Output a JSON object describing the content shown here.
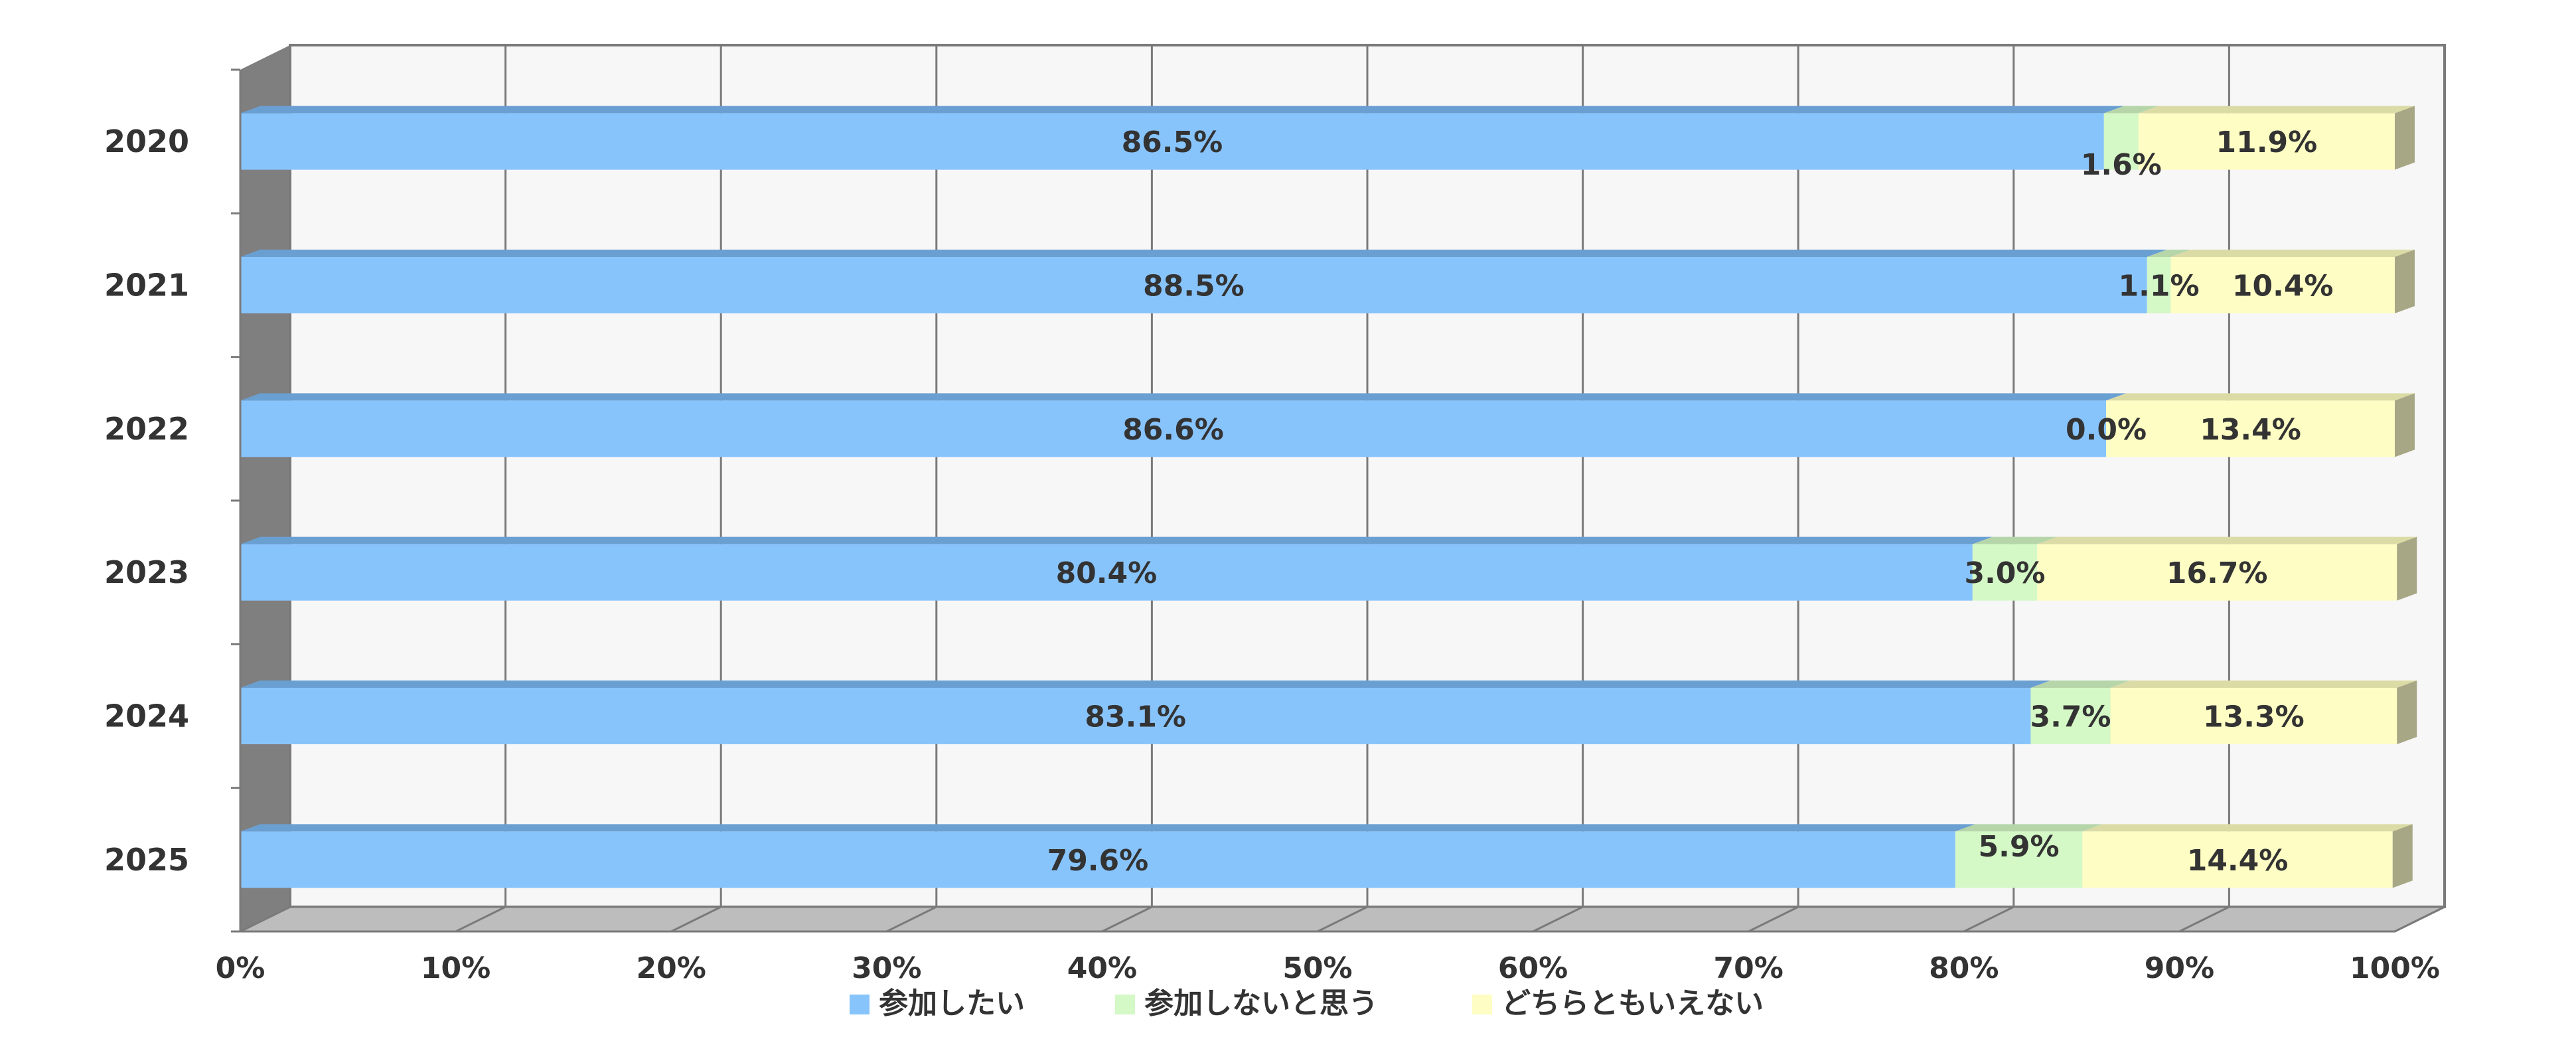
{
  "chart_data": {
    "type": "bar",
    "orientation": "horizontal",
    "stacked": "percent",
    "three_d": true,
    "categories": [
      "2020",
      "2021",
      "2022",
      "2023",
      "2024",
      "2025"
    ],
    "series": [
      {
        "name": "参加したい",
        "values": [
          86.5,
          88.5,
          86.6,
          80.4,
          83.1,
          79.6
        ],
        "color": "#88c4fc",
        "top_color": "#6a9fd2",
        "side_color": "#6a9fd2"
      },
      {
        "name": "参加しないと思う",
        "values": [
          1.6,
          1.1,
          0.0,
          3.0,
          3.7,
          5.9
        ],
        "color": "#d4f8c6",
        "top_color": "#b6d6aa",
        "side_color": "#a8c49c"
      },
      {
        "name": "どちらともいえない",
        "values": [
          11.9,
          10.4,
          13.4,
          16.7,
          13.3,
          14.4
        ],
        "color": "#fdfdc4",
        "top_color": "#dbdba6",
        "side_color": "#a7a785"
      }
    ],
    "data_labels": [
      [
        "86.5%",
        "88.5%",
        "86.6%",
        "80.4%",
        "83.1%",
        "79.6%"
      ],
      [
        "1.6%",
        "1.1%",
        "0.0%",
        "3.0%",
        "3.7%",
        "5.9%"
      ],
      [
        "11.9%",
        "10.4%",
        "13.4%",
        "16.7%",
        "13.3%",
        "14.4%"
      ]
    ],
    "x_ticks": [
      "0%",
      "10%",
      "20%",
      "30%",
      "40%",
      "50%",
      "60%",
      "70%",
      "80%",
      "90%",
      "100%"
    ],
    "xlim": [
      0,
      100
    ],
    "grid": true,
    "legend": "bottom",
    "colors": {
      "wall": "#f7f7f7",
      "floor": "#bdbdbd",
      "side_wall": "#7f7f7f",
      "gridline": "#7a7a7a",
      "text": "#333333"
    }
  }
}
